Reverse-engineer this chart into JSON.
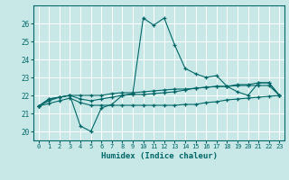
{
  "xlabel": "Humidex (Indice chaleur)",
  "background_color": "#c8e8e8",
  "grid_color": "#ffffff",
  "line_color": "#006666",
  "x_values": [
    0,
    1,
    2,
    3,
    4,
    5,
    6,
    7,
    8,
    9,
    10,
    11,
    12,
    13,
    14,
    15,
    16,
    17,
    18,
    19,
    20,
    21,
    22,
    23
  ],
  "series1": [
    21.4,
    21.8,
    21.9,
    22.0,
    20.3,
    20.0,
    21.3,
    21.5,
    22.0,
    22.1,
    26.3,
    25.9,
    26.3,
    24.8,
    23.5,
    23.2,
    23.0,
    23.1,
    22.5,
    22.2,
    22.0,
    22.7,
    22.7,
    22.0
  ],
  "series2": [
    21.4,
    21.8,
    21.9,
    22.0,
    22.0,
    22.0,
    22.0,
    22.1,
    22.15,
    22.15,
    22.2,
    22.25,
    22.3,
    22.35,
    22.35,
    22.4,
    22.45,
    22.5,
    22.5,
    22.55,
    22.55,
    22.55,
    22.55,
    22.0
  ],
  "series3": [
    21.4,
    21.55,
    21.7,
    21.85,
    21.6,
    21.45,
    21.45,
    21.45,
    21.45,
    21.45,
    21.45,
    21.45,
    21.45,
    21.45,
    21.5,
    21.5,
    21.6,
    21.65,
    21.75,
    21.8,
    21.85,
    21.9,
    21.95,
    22.0
  ],
  "series4": [
    21.4,
    21.7,
    21.9,
    22.0,
    21.8,
    21.7,
    21.8,
    21.9,
    22.0,
    22.05,
    22.05,
    22.1,
    22.15,
    22.2,
    22.3,
    22.4,
    22.45,
    22.5,
    22.5,
    22.6,
    22.6,
    22.7,
    22.7,
    22.0
  ],
  "ylim": [
    19.5,
    27.0
  ],
  "xlim": [
    -0.5,
    23.5
  ],
  "yticks": [
    20,
    21,
    22,
    23,
    24,
    25,
    26
  ],
  "xticks": [
    0,
    1,
    2,
    3,
    4,
    5,
    6,
    7,
    8,
    9,
    10,
    11,
    12,
    13,
    14,
    15,
    16,
    17,
    18,
    19,
    20,
    21,
    22,
    23
  ],
  "tick_fontsize": 5.0,
  "xlabel_fontsize": 6.5,
  "ytick_fontsize": 5.5
}
